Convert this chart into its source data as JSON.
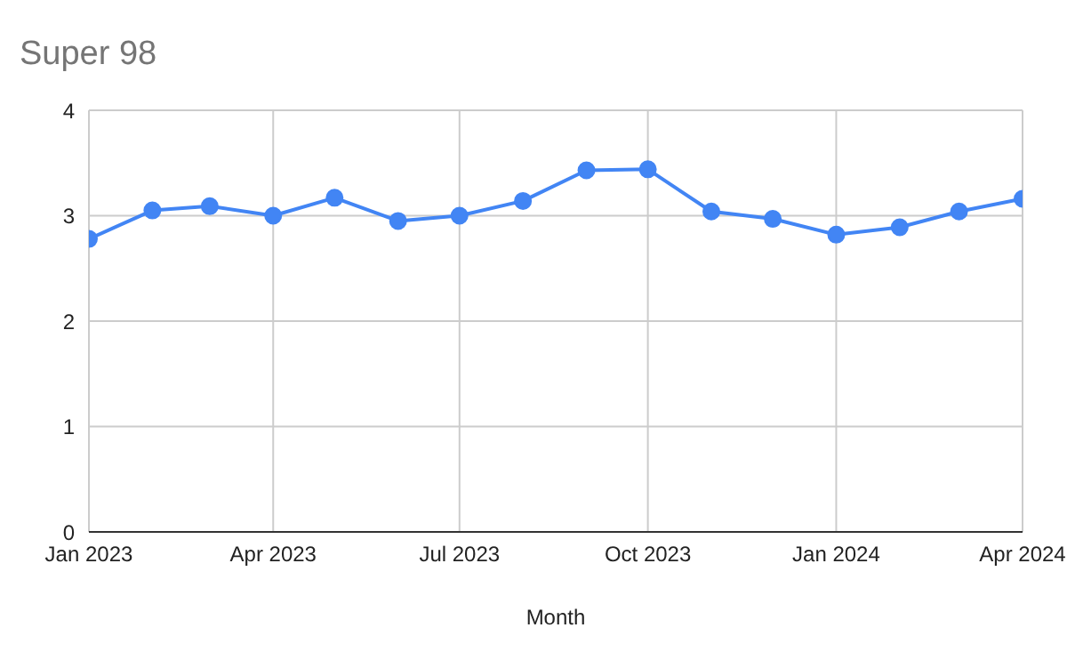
{
  "chart_data": {
    "type": "line",
    "title": "Super 98",
    "xlabel": "Month",
    "x": [
      "2023-01",
      "2023-02",
      "2023-03",
      "2023-04",
      "2023-05",
      "2023-06",
      "2023-07",
      "2023-08",
      "2023-09",
      "2023-10",
      "2023-11",
      "2023-12",
      "2024-01",
      "2024-02",
      "2024-03",
      "2024-04"
    ],
    "series": [
      {
        "color": "#4285f4",
        "values": [
          2.78,
          3.05,
          3.09,
          3.0,
          3.17,
          2.95,
          3.0,
          3.14,
          3.43,
          3.44,
          3.04,
          2.97,
          2.82,
          2.89,
          3.04,
          3.16
        ]
      }
    ],
    "xlim": [
      "2023-01",
      "2024-04"
    ],
    "xticks": [
      {
        "value": "2023-01",
        "label": "Jan 2023"
      },
      {
        "value": "2023-04",
        "label": "Apr 2023"
      },
      {
        "value": "2023-07",
        "label": "Jul 2023"
      },
      {
        "value": "2023-10",
        "label": "Oct 2023"
      },
      {
        "value": "2024-01",
        "label": "Jan 2024"
      },
      {
        "value": "2024-04",
        "label": "Apr 2024"
      }
    ],
    "ylim": [
      0,
      4
    ],
    "yticks": [
      0,
      1,
      2,
      3,
      4
    ],
    "grid": true,
    "marker": "circle",
    "line_style": "solid",
    "legend": false
  }
}
